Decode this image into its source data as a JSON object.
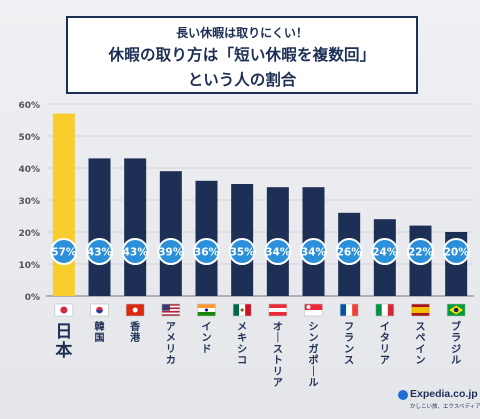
{
  "title": {
    "line1": "長い休暇は取りにくい！",
    "line2": "休暇の取り方は「短い休暇を複数回」",
    "line3": "という人の割合"
  },
  "logo": {
    "name": "Expedia.co.jp",
    "tagline": "かしこい旅、エクスペディア"
  },
  "colors": {
    "highlight_bar": "#f7ce2e",
    "bar": "#1e2f55",
    "badge": "#2b8fd9",
    "grid": "#c9ccd2",
    "axis_text": "#555555"
  },
  "chart_data": {
    "type": "bar",
    "categories": [
      "日本",
      "韓国",
      "香港",
      "アメリカ",
      "インド",
      "メキシコ",
      "オーストリア",
      "シンガポール",
      "フランス",
      "イタリア",
      "スペイン",
      "ブラジル"
    ],
    "values": [
      57,
      43,
      43,
      39,
      36,
      35,
      34,
      34,
      26,
      24,
      22,
      20
    ],
    "value_labels": [
      "57%",
      "43%",
      "43%",
      "39%",
      "36%",
      "35%",
      "34%",
      "34%",
      "26%",
      "24%",
      "22%",
      "20%"
    ],
    "highlight_index": 0,
    "flags": [
      "japan-flag-icon",
      "korea-flag-icon",
      "hongkong-flag-icon",
      "usa-flag-icon",
      "india-flag-icon",
      "mexico-flag-icon",
      "austria-flag-icon",
      "singapore-flag-icon",
      "france-flag-icon",
      "italy-flag-icon",
      "spain-flag-icon",
      "brazil-flag-icon"
    ],
    "yticks": [
      "0%",
      "10%",
      "20%",
      "30%",
      "40%",
      "50%",
      "60%"
    ],
    "ylim": [
      0,
      60
    ],
    "grid": true
  }
}
